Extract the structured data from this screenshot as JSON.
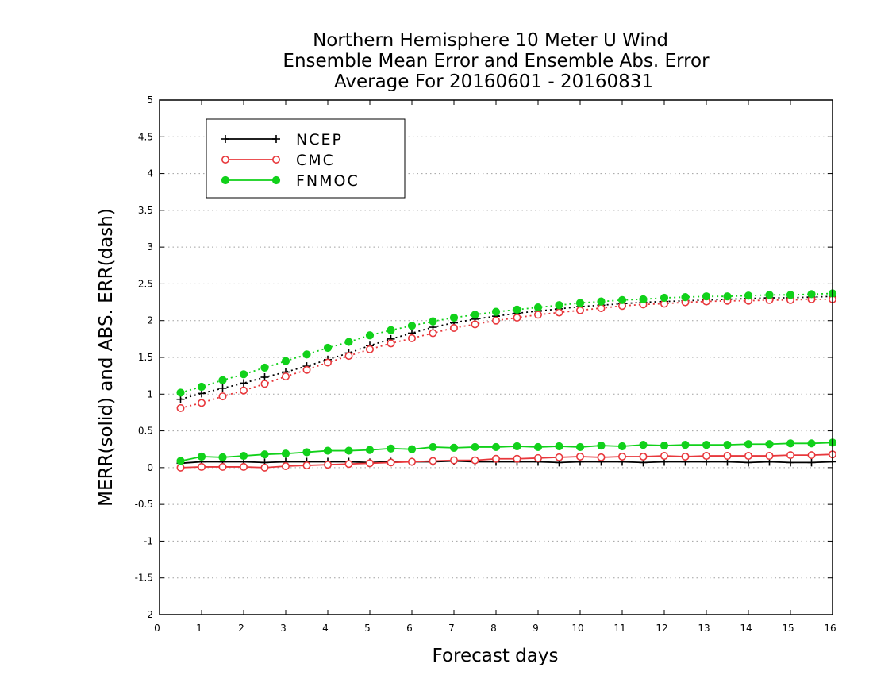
{
  "chart_data": {
    "type": "line",
    "title_lines": [
      "Northern Hemisphere 10 Meter U Wind",
      "Ensemble Mean Error and Ensemble Abs. Error",
      "Average For 20160601 - 20160831"
    ],
    "xlabel": "Forecast days",
    "ylabel": "MERR(solid) and ABS. ERR(dash)",
    "xlim": [
      0,
      16
    ],
    "ylim": [
      -2,
      5
    ],
    "x_ticks": [
      "0",
      "1",
      "2",
      "3",
      "4",
      "5",
      "6",
      "7",
      "8",
      "9",
      "10",
      "11",
      "12",
      "13",
      "14",
      "15",
      "16"
    ],
    "y_ticks": [
      "-2",
      "-1.5",
      "-1",
      "-0.5",
      "0",
      "0.5",
      "1",
      "1.5",
      "2",
      "2.5",
      "3",
      "3.5",
      "4",
      "4.5",
      "5"
    ],
    "grid": "horizontal-dotted",
    "legend_position": "top-left",
    "x": [
      0.5,
      1,
      1.5,
      2,
      2.5,
      3,
      3.5,
      4,
      4.5,
      5,
      5.5,
      6,
      6.5,
      7,
      7.5,
      8,
      8.5,
      9,
      9.5,
      10,
      10.5,
      11,
      11.5,
      12,
      12.5,
      13,
      13.5,
      14,
      14.5,
      15,
      15.5,
      16
    ],
    "series": [
      {
        "name": "NCEP",
        "color": "#000000",
        "marker": "plus",
        "merr": [
          0.06,
          0.08,
          0.08,
          0.08,
          0.07,
          0.08,
          0.08,
          0.08,
          0.08,
          0.07,
          0.08,
          0.08,
          0.08,
          0.09,
          0.08,
          0.08,
          0.08,
          0.08,
          0.07,
          0.08,
          0.08,
          0.08,
          0.07,
          0.08,
          0.08,
          0.08,
          0.08,
          0.07,
          0.08,
          0.07,
          0.07,
          0.08
        ],
        "abs_err": [
          0.93,
          1.01,
          1.08,
          1.15,
          1.23,
          1.3,
          1.38,
          1.47,
          1.56,
          1.66,
          1.75,
          1.83,
          1.91,
          1.97,
          2.02,
          2.06,
          2.1,
          2.13,
          2.16,
          2.19,
          2.21,
          2.23,
          2.25,
          2.26,
          2.27,
          2.28,
          2.29,
          2.3,
          2.31,
          2.31,
          2.32,
          2.33
        ]
      },
      {
        "name": "CMC",
        "color": "#e8383c",
        "marker": "open-circle",
        "merr": [
          0.0,
          0.01,
          0.01,
          0.01,
          0.0,
          0.02,
          0.03,
          0.04,
          0.05,
          0.06,
          0.07,
          0.08,
          0.09,
          0.1,
          0.1,
          0.12,
          0.12,
          0.13,
          0.14,
          0.15,
          0.14,
          0.15,
          0.15,
          0.16,
          0.15,
          0.16,
          0.16,
          0.16,
          0.16,
          0.17,
          0.17,
          0.18
        ],
        "abs_err": [
          0.81,
          0.88,
          0.97,
          1.05,
          1.14,
          1.24,
          1.33,
          1.43,
          1.52,
          1.61,
          1.69,
          1.76,
          1.83,
          1.9,
          1.95,
          2.0,
          2.04,
          2.08,
          2.11,
          2.14,
          2.17,
          2.2,
          2.22,
          2.23,
          2.25,
          2.26,
          2.27,
          2.27,
          2.28,
          2.28,
          2.29,
          2.29
        ]
      },
      {
        "name": "FNMOC",
        "color": "#11d11a",
        "marker": "filled-circle",
        "merr": [
          0.09,
          0.15,
          0.14,
          0.16,
          0.18,
          0.19,
          0.21,
          0.23,
          0.23,
          0.24,
          0.26,
          0.25,
          0.28,
          0.27,
          0.28,
          0.28,
          0.29,
          0.28,
          0.29,
          0.28,
          0.3,
          0.29,
          0.31,
          0.3,
          0.31,
          0.31,
          0.31,
          0.32,
          0.32,
          0.33,
          0.33,
          0.34
        ],
        "abs_err": [
          1.02,
          1.1,
          1.19,
          1.27,
          1.36,
          1.45,
          1.54,
          1.63,
          1.71,
          1.8,
          1.87,
          1.93,
          1.99,
          2.04,
          2.08,
          2.12,
          2.15,
          2.18,
          2.21,
          2.24,
          2.26,
          2.28,
          2.29,
          2.31,
          2.32,
          2.33,
          2.33,
          2.34,
          2.35,
          2.35,
          2.36,
          2.37
        ]
      }
    ]
  }
}
